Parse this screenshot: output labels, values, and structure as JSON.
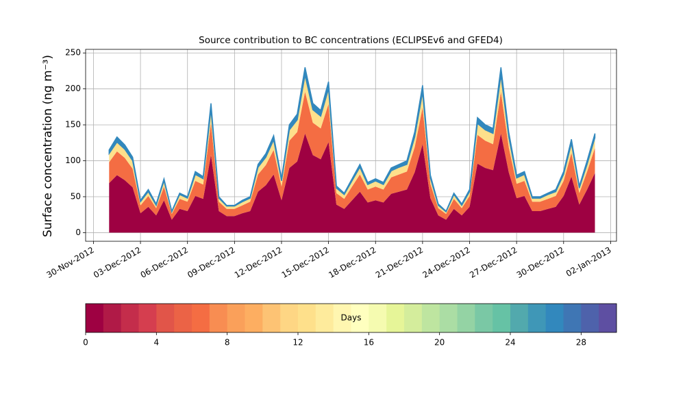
{
  "chart_data": {
    "type": "area",
    "stacked": true,
    "title": "Source contribution to BC concentrations (ECLIPSEv6 and GFED4)",
    "ylabel": "Surface concentration (ng m⁻³)",
    "x": [
      "2012-12-01 00:00",
      "2012-12-01 12:00",
      "2012-12-02 00:00",
      "2012-12-02 12:00",
      "2012-12-03 00:00",
      "2012-12-03 12:00",
      "2012-12-04 00:00",
      "2012-12-04 12:00",
      "2012-12-05 00:00",
      "2012-12-05 12:00",
      "2012-12-06 00:00",
      "2012-12-06 12:00",
      "2012-12-07 00:00",
      "2012-12-07 12:00",
      "2012-12-08 00:00",
      "2012-12-08 12:00",
      "2012-12-09 00:00",
      "2012-12-09 12:00",
      "2012-12-10 00:00",
      "2012-12-10 12:00",
      "2012-12-11 00:00",
      "2012-12-11 12:00",
      "2012-12-12 00:00",
      "2012-12-12 12:00",
      "2012-12-13 00:00",
      "2012-12-13 12:00",
      "2012-12-14 00:00",
      "2012-12-14 12:00",
      "2012-12-15 00:00",
      "2012-12-15 12:00",
      "2012-12-16 00:00",
      "2012-12-16 12:00",
      "2012-12-17 00:00",
      "2012-12-17 12:00",
      "2012-12-18 00:00",
      "2012-12-18 12:00",
      "2012-12-19 00:00",
      "2012-12-19 12:00",
      "2012-12-20 00:00",
      "2012-12-20 12:00",
      "2012-12-21 00:00",
      "2012-12-21 12:00",
      "2012-12-22 00:00",
      "2012-12-22 12:00",
      "2012-12-23 00:00",
      "2012-12-23 12:00",
      "2012-12-24 00:00",
      "2012-12-24 12:00",
      "2012-12-25 00:00",
      "2012-12-25 12:00",
      "2012-12-26 00:00",
      "2012-12-26 12:00",
      "2012-12-27 00:00",
      "2012-12-27 12:00",
      "2012-12-28 00:00",
      "2012-12-28 12:00",
      "2012-12-29 00:00",
      "2012-12-29 12:00",
      "2012-12-30 00:00",
      "2012-12-30 12:00",
      "2012-12-31 00:00",
      "2012-12-31 12:00",
      "2013-01-01 00:00"
    ],
    "series": [
      {
        "color": "#9e0142",
        "values": [
          69,
          80,
          73,
          63,
          27,
          36,
          24,
          45,
          18,
          33,
          30,
          51,
          47,
          108,
          30,
          23,
          23,
          27,
          30,
          57,
          66,
          81,
          45,
          90,
          99,
          138,
          108,
          102,
          126,
          39,
          33,
          45,
          57,
          42,
          45,
          42,
          54,
          57,
          60,
          84,
          123,
          48,
          24,
          18,
          33,
          24,
          36,
          96,
          90,
          87,
          138,
          84,
          48,
          51,
          30,
          30,
          33,
          36,
          51,
          78,
          39,
          60,
          83
        ]
      },
      {
        "color": "#f46d43",
        "values": [
          29,
          33,
          31,
          26,
          11,
          15,
          10,
          19,
          8,
          14,
          13,
          21,
          20,
          45,
          13,
          10,
          10,
          11,
          13,
          24,
          28,
          34,
          19,
          38,
          41,
          58,
          45,
          43,
          53,
          16,
          14,
          19,
          24,
          18,
          19,
          18,
          23,
          24,
          25,
          35,
          51,
          20,
          10,
          8,
          14,
          10,
          15,
          40,
          38,
          36,
          58,
          35,
          20,
          21,
          13,
          13,
          14,
          15,
          21,
          33,
          16,
          25,
          35
        ]
      },
      {
        "color": "#fee08b",
        "values": [
          12,
          13,
          12,
          11,
          5,
          6,
          4,
          8,
          3,
          6,
          5,
          9,
          8,
          18,
          5,
          4,
          4,
          5,
          5,
          10,
          11,
          14,
          8,
          15,
          17,
          23,
          18,
          17,
          21,
          7,
          6,
          8,
          10,
          7,
          8,
          7,
          9,
          10,
          10,
          14,
          21,
          8,
          4,
          3,
          6,
          4,
          6,
          16,
          15,
          15,
          23,
          14,
          8,
          9,
          5,
          5,
          6,
          6,
          9,
          13,
          7,
          10,
          14
        ]
      },
      {
        "color": "#3288bd",
        "values": [
          5,
          7,
          6,
          5,
          2,
          3,
          2,
          3,
          1,
          2,
          2,
          4,
          3,
          9,
          2,
          1,
          1,
          2,
          2,
          4,
          5,
          6,
          3,
          7,
          8,
          11,
          9,
          8,
          10,
          3,
          2,
          3,
          4,
          3,
          3,
          3,
          4,
          4,
          5,
          7,
          10,
          4,
          2,
          1,
          2,
          2,
          3,
          8,
          7,
          7,
          11,
          7,
          4,
          4,
          2,
          2,
          2,
          3,
          4,
          6,
          3,
          5,
          6
        ]
      }
    ],
    "xlim": [
      "2012-11-29 12:00",
      "2013-01-02 09:00"
    ],
    "xticks": [
      {
        "value": "2012-11-30",
        "label": "30-Nov-2012"
      },
      {
        "value": "2012-12-03",
        "label": "03-Dec-2012"
      },
      {
        "value": "2012-12-06",
        "label": "06-Dec-2012"
      },
      {
        "value": "2012-12-09",
        "label": "09-Dec-2012"
      },
      {
        "value": "2012-12-12",
        "label": "12-Dec-2012"
      },
      {
        "value": "2012-12-15",
        "label": "15-Dec-2012"
      },
      {
        "value": "2012-12-18",
        "label": "18-Dec-2012"
      },
      {
        "value": "2012-12-21",
        "label": "21-Dec-2012"
      },
      {
        "value": "2012-12-24",
        "label": "24-Dec-2012"
      },
      {
        "value": "2012-12-27",
        "label": "27-Dec-2012"
      },
      {
        "value": "2012-12-30",
        "label": "30-Dec-2012"
      },
      {
        "value": "2013-01-02",
        "label": "02-Jan-2013"
      }
    ],
    "ylim": [
      -12,
      255
    ],
    "yticks": [
      0,
      50,
      100,
      150,
      200,
      250
    ],
    "grid": true,
    "colorbar": {
      "label": "Days",
      "lim": [
        0,
        30
      ],
      "ticks": [
        0,
        4,
        8,
        12,
        16,
        20,
        24,
        28
      ],
      "colors": [
        "#9e0142",
        "#b01a47",
        "#c42d4b",
        "#d53e4f",
        "#e15549",
        "#eb6346",
        "#f46d43",
        "#f88d52",
        "#faa05a",
        "#fdae61",
        "#fdc374",
        "#fed684",
        "#fee08b",
        "#feeb9c",
        "#fff6b0",
        "#ffffbf",
        "#f5fbb0",
        "#e6f598",
        "#d4ed9c",
        "#bee5a0",
        "#abdda4",
        "#94d3a4",
        "#7ac8a5",
        "#66c2a5",
        "#52a9ad",
        "#3f97b7",
        "#3288bd",
        "#3f76b4",
        "#4e62ab",
        "#5e4fa2"
      ]
    }
  }
}
